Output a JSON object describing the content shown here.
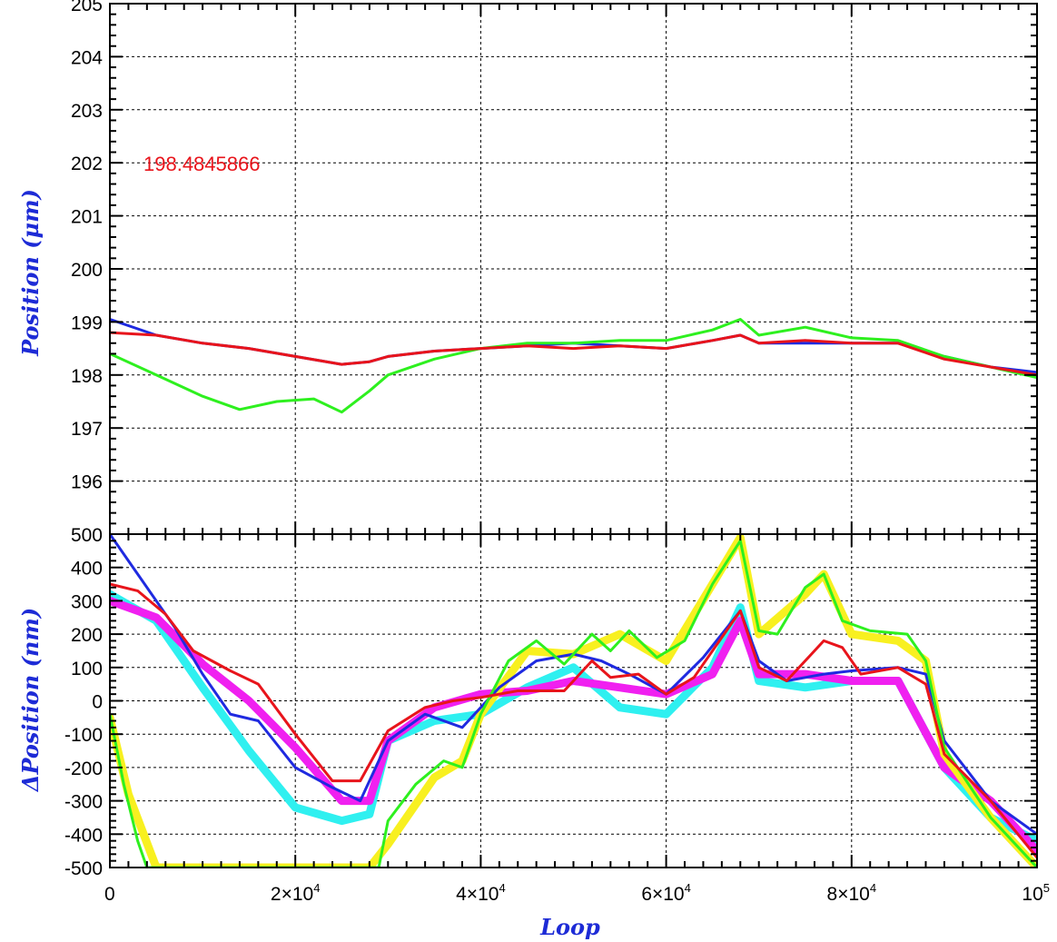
{
  "colors": {
    "blue": "#1f2ae0",
    "red": "#e8141b",
    "green": "#2ef01f",
    "yellow": "#f8f020",
    "cyan": "#2ff0f0",
    "magenta": "#f020f0",
    "axis_title": "#1d2bd6",
    "grid": "#000000"
  },
  "chart_data": [
    {
      "type": "line",
      "panel": "top",
      "ylabel": "Position (μm)",
      "annotation": "198.4845866",
      "x_range": [
        0,
        100000
      ],
      "ylim": [
        195,
        205
      ],
      "y_ticks": [
        196,
        197,
        198,
        199,
        200,
        201,
        202,
        203,
        204,
        205
      ],
      "y_tick_labels": [
        "196",
        "197",
        "198",
        "199",
        "200",
        "201",
        "202",
        "203",
        "204",
        "205"
      ],
      "grid": "dashed",
      "series": [
        {
          "color": "blue",
          "points": [
            [
              0,
              199.05
            ],
            [
              5000,
              198.75
            ],
            [
              10000,
              198.6
            ],
            [
              15000,
              198.5
            ],
            [
              20000,
              198.35
            ],
            [
              25000,
              198.2
            ],
            [
              28000,
              198.25
            ],
            [
              30000,
              198.35
            ],
            [
              35000,
              198.45
            ],
            [
              40000,
              198.5
            ],
            [
              45000,
              198.55
            ],
            [
              50000,
              198.6
            ],
            [
              55000,
              198.55
            ],
            [
              60000,
              198.5
            ],
            [
              65000,
              198.65
            ],
            [
              68000,
              198.75
            ],
            [
              70000,
              198.6
            ],
            [
              75000,
              198.6
            ],
            [
              80000,
              198.6
            ],
            [
              85000,
              198.6
            ],
            [
              90000,
              198.35
            ],
            [
              95000,
              198.15
            ],
            [
              100000,
              198.05
            ]
          ]
        },
        {
          "color": "green",
          "points": [
            [
              0,
              198.4
            ],
            [
              5000,
              198.0
            ],
            [
              10000,
              197.6
            ],
            [
              14000,
              197.35
            ],
            [
              18000,
              197.5
            ],
            [
              22000,
              197.55
            ],
            [
              25000,
              197.3
            ],
            [
              28000,
              197.7
            ],
            [
              30000,
              198.0
            ],
            [
              35000,
              198.3
            ],
            [
              40000,
              198.5
            ],
            [
              45000,
              198.6
            ],
            [
              50000,
              198.6
            ],
            [
              55000,
              198.65
            ],
            [
              60000,
              198.65
            ],
            [
              65000,
              198.85
            ],
            [
              68000,
              199.05
            ],
            [
              70000,
              198.75
            ],
            [
              75000,
              198.9
            ],
            [
              80000,
              198.7
            ],
            [
              85000,
              198.65
            ],
            [
              90000,
              198.35
            ],
            [
              95000,
              198.15
            ],
            [
              100000,
              197.95
            ]
          ]
        },
        {
          "color": "red",
          "points": [
            [
              0,
              198.8
            ],
            [
              5000,
              198.75
            ],
            [
              10000,
              198.6
            ],
            [
              15000,
              198.5
            ],
            [
              20000,
              198.35
            ],
            [
              25000,
              198.2
            ],
            [
              28000,
              198.25
            ],
            [
              30000,
              198.35
            ],
            [
              35000,
              198.45
            ],
            [
              40000,
              198.5
            ],
            [
              45000,
              198.55
            ],
            [
              50000,
              198.5
            ],
            [
              55000,
              198.55
            ],
            [
              60000,
              198.5
            ],
            [
              65000,
              198.65
            ],
            [
              68000,
              198.75
            ],
            [
              70000,
              198.6
            ],
            [
              75000,
              198.65
            ],
            [
              80000,
              198.6
            ],
            [
              85000,
              198.6
            ],
            [
              90000,
              198.3
            ],
            [
              95000,
              198.15
            ],
            [
              100000,
              198.0
            ]
          ]
        }
      ]
    },
    {
      "type": "line",
      "panel": "bottom",
      "xlabel": "Loop",
      "ylabel": "ΔPosition (nm)",
      "xlim": [
        0,
        100000
      ],
      "ylim": [
        -500,
        500
      ],
      "x_ticks": [
        0,
        20000,
        40000,
        60000,
        80000,
        100000
      ],
      "x_tick_labels": [
        {
          "base": "0",
          "exp": ""
        },
        {
          "base": "2×10",
          "exp": "4"
        },
        {
          "base": "4×10",
          "exp": "4"
        },
        {
          "base": "6×10",
          "exp": "4"
        },
        {
          "base": "8×10",
          "exp": "4"
        },
        {
          "base": "10",
          "exp": "5"
        }
      ],
      "y_ticks": [
        -500,
        -400,
        -300,
        -200,
        -100,
        0,
        100,
        200,
        300,
        400,
        500
      ],
      "y_tick_labels": [
        "-500",
        "-400",
        "-300",
        "-200",
        "-100",
        "0",
        "100",
        "200",
        "300",
        "400",
        "500"
      ],
      "grid": "dashed",
      "series": [
        {
          "color": "cyan",
          "points": [
            [
              0,
              320
            ],
            [
              5000,
              240
            ],
            [
              10000,
              40
            ],
            [
              15000,
              -150
            ],
            [
              20000,
              -320
            ],
            [
              25000,
              -360
            ],
            [
              28000,
              -340
            ],
            [
              30000,
              -120
            ],
            [
              35000,
              -60
            ],
            [
              40000,
              -40
            ],
            [
              45000,
              40
            ],
            [
              50000,
              100
            ],
            [
              55000,
              -20
            ],
            [
              60000,
              -40
            ],
            [
              65000,
              100
            ],
            [
              68000,
              280
            ],
            [
              70000,
              60
            ],
            [
              75000,
              40
            ],
            [
              80000,
              60
            ],
            [
              85000,
              60
            ],
            [
              90000,
              -200
            ],
            [
              95000,
              -350
            ],
            [
              100000,
              -420
            ]
          ]
        },
        {
          "color": "magenta",
          "points": [
            [
              0,
              300
            ],
            [
              5000,
              250
            ],
            [
              10000,
              110
            ],
            [
              15000,
              0
            ],
            [
              20000,
              -140
            ],
            [
              25000,
              -300
            ],
            [
              28000,
              -300
            ],
            [
              30000,
              -120
            ],
            [
              35000,
              -20
            ],
            [
              40000,
              20
            ],
            [
              45000,
              30
            ],
            [
              50000,
              60
            ],
            [
              55000,
              40
            ],
            [
              60000,
              20
            ],
            [
              65000,
              80
            ],
            [
              68000,
              240
            ],
            [
              70000,
              80
            ],
            [
              75000,
              80
            ],
            [
              80000,
              60
            ],
            [
              85000,
              60
            ],
            [
              90000,
              -200
            ],
            [
              95000,
              -300
            ],
            [
              100000,
              -450
            ]
          ]
        },
        {
          "color": "yellow",
          "points": [
            [
              0,
              -50
            ],
            [
              2000,
              -280
            ],
            [
              5000,
              -500
            ],
            [
              28000,
              -500
            ],
            [
              30000,
              -430
            ],
            [
              35000,
              -230
            ],
            [
              38000,
              -180
            ],
            [
              40000,
              -40
            ],
            [
              45000,
              150
            ],
            [
              50000,
              140
            ],
            [
              55000,
              200
            ],
            [
              60000,
              120
            ],
            [
              65000,
              350
            ],
            [
              68000,
              490
            ],
            [
              70000,
              200
            ],
            [
              75000,
              320
            ],
            [
              77000,
              380
            ],
            [
              80000,
              200
            ],
            [
              85000,
              180
            ],
            [
              88000,
              120
            ],
            [
              90000,
              -160
            ],
            [
              95000,
              -350
            ],
            [
              100000,
              -500
            ]
          ]
        },
        {
          "color": "blue",
          "points": [
            [
              0,
              500
            ],
            [
              3000,
              380
            ],
            [
              7000,
              220
            ],
            [
              10000,
              80
            ],
            [
              13000,
              -40
            ],
            [
              16000,
              -60
            ],
            [
              20000,
              -200
            ],
            [
              24000,
              -260
            ],
            [
              27000,
              -300
            ],
            [
              30000,
              -120
            ],
            [
              34000,
              -40
            ],
            [
              38000,
              -80
            ],
            [
              42000,
              40
            ],
            [
              46000,
              120
            ],
            [
              50000,
              140
            ],
            [
              53000,
              120
            ],
            [
              56000,
              80
            ],
            [
              60000,
              20
            ],
            [
              64000,
              130
            ],
            [
              68000,
              270
            ],
            [
              70000,
              120
            ],
            [
              73000,
              60
            ],
            [
              77000,
              80
            ],
            [
              80000,
              90
            ],
            [
              85000,
              100
            ],
            [
              88000,
              80
            ],
            [
              90000,
              -120
            ],
            [
              95000,
              -300
            ],
            [
              100000,
              -400
            ]
          ]
        },
        {
          "color": "green",
          "points": [
            [
              0,
              -40
            ],
            [
              1500,
              -250
            ],
            [
              3000,
              -420
            ],
            [
              4000,
              -500
            ],
            [
              29000,
              -500
            ],
            [
              30000,
              -360
            ],
            [
              33000,
              -250
            ],
            [
              36000,
              -180
            ],
            [
              38000,
              -200
            ],
            [
              40000,
              -40
            ],
            [
              43000,
              120
            ],
            [
              46000,
              180
            ],
            [
              49000,
              110
            ],
            [
              52000,
              200
            ],
            [
              54000,
              150
            ],
            [
              56000,
              210
            ],
            [
              59000,
              130
            ],
            [
              62000,
              180
            ],
            [
              65000,
              350
            ],
            [
              68000,
              480
            ],
            [
              70000,
              210
            ],
            [
              72000,
              200
            ],
            [
              75000,
              340
            ],
            [
              77000,
              380
            ],
            [
              79000,
              240
            ],
            [
              82000,
              210
            ],
            [
              86000,
              200
            ],
            [
              88000,
              120
            ],
            [
              90000,
              -140
            ],
            [
              95000,
              -350
            ],
            [
              100000,
              -500
            ]
          ]
        },
        {
          "color": "red",
          "points": [
            [
              0,
              350
            ],
            [
              3000,
              330
            ],
            [
              6000,
              260
            ],
            [
              9000,
              150
            ],
            [
              13000,
              90
            ],
            [
              16000,
              50
            ],
            [
              20000,
              -100
            ],
            [
              24000,
              -240
            ],
            [
              27000,
              -240
            ],
            [
              30000,
              -90
            ],
            [
              34000,
              -20
            ],
            [
              37000,
              0
            ],
            [
              40000,
              10
            ],
            [
              44000,
              30
            ],
            [
              49000,
              30
            ],
            [
              52000,
              120
            ],
            [
              54000,
              70
            ],
            [
              57000,
              80
            ],
            [
              60000,
              20
            ],
            [
              63000,
              70
            ],
            [
              68000,
              270
            ],
            [
              70000,
              100
            ],
            [
              73000,
              60
            ],
            [
              77000,
              180
            ],
            [
              79000,
              160
            ],
            [
              81000,
              80
            ],
            [
              85000,
              100
            ],
            [
              88000,
              50
            ],
            [
              90000,
              -160
            ],
            [
              95000,
              -300
            ],
            [
              100000,
              -470
            ]
          ]
        }
      ]
    }
  ]
}
